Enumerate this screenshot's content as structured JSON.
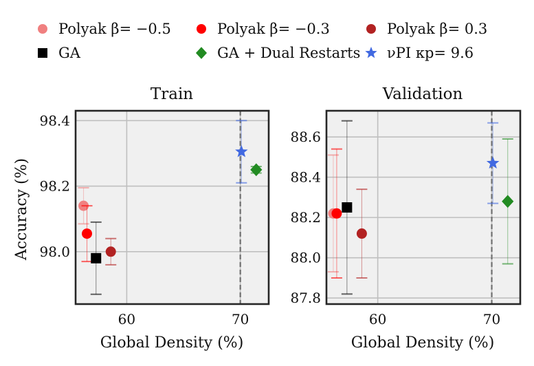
{
  "legend": [
    {
      "label": "Polyak β= −0.5",
      "color": "#F08080",
      "marker": "circle"
    },
    {
      "label": "Polyak β= −0.3",
      "color": "#FF0000",
      "marker": "circle"
    },
    {
      "label": "Polyak β= 0.3",
      "color": "#B22222",
      "marker": "circle"
    },
    {
      "label": "GA",
      "color": "#000000",
      "marker": "square"
    },
    {
      "label": "GA + Dual Restarts",
      "color": "#228B22",
      "marker": "diamond"
    },
    {
      "label": "νPI κp= 9.6",
      "color": "#4169E1",
      "marker": "star"
    }
  ],
  "chart_data": [
    {
      "type": "scatter",
      "title": "Train",
      "xlabel": "Global Density (%)",
      "ylabel": "Accuracy (%)",
      "xlim": [
        55.5,
        72.5
      ],
      "ylim": [
        97.84,
        98.43
      ],
      "xticks": [
        60,
        70
      ],
      "yticks": [
        98.0,
        98.2,
        98.4
      ],
      "yticklabels": [
        "98.0",
        "98.2",
        "98.4"
      ],
      "grid": true,
      "target_line_x": 70,
      "series": [
        {
          "name": "Polyak β= −0.5",
          "x": 56.2,
          "y": 98.14,
          "err_low": 98.085,
          "err_high": 98.195
        },
        {
          "name": "Polyak β= −0.3",
          "x": 56.5,
          "y": 98.055,
          "err_low": 97.97,
          "err_high": 98.14
        },
        {
          "name": "Polyak β= 0.3",
          "x": 58.6,
          "y": 98.0,
          "err_low": 97.96,
          "err_high": 98.04
        },
        {
          "name": "GA",
          "x": 57.3,
          "y": 97.98,
          "err_low": 97.87,
          "err_high": 98.09
        },
        {
          "name": "GA + Dual Restarts",
          "x": 71.4,
          "y": 98.25,
          "err_low": 98.24,
          "err_high": 98.26
        },
        {
          "name": "νPI κp= 9.6",
          "x": 70.1,
          "y": 98.305,
          "err_low": 98.21,
          "err_high": 98.4
        }
      ]
    },
    {
      "type": "scatter",
      "title": "Validation",
      "xlabel": "Global Density (%)",
      "ylabel": "",
      "xlim": [
        55.5,
        72.5
      ],
      "ylim": [
        87.77,
        88.73
      ],
      "xticks": [
        60,
        70
      ],
      "yticks": [
        87.8,
        88.0,
        88.2,
        88.4,
        88.6
      ],
      "yticklabels": [
        "87.8",
        "88.0",
        "88.2",
        "88.4",
        "88.6"
      ],
      "grid": true,
      "target_line_x": 70,
      "series": [
        {
          "name": "Polyak β= −0.5",
          "x": 56.1,
          "y": 88.22,
          "err_low": 87.93,
          "err_high": 88.51
        },
        {
          "name": "Polyak β= −0.3",
          "x": 56.4,
          "y": 88.22,
          "err_low": 87.9,
          "err_high": 88.54
        },
        {
          "name": "Polyak β= 0.3",
          "x": 58.6,
          "y": 88.12,
          "err_low": 87.9,
          "err_high": 88.34
        },
        {
          "name": "GA",
          "x": 57.3,
          "y": 88.25,
          "err_low": 87.82,
          "err_high": 88.68
        },
        {
          "name": "GA + Dual Restarts",
          "x": 71.4,
          "y": 88.28,
          "err_low": 87.97,
          "err_high": 88.59
        },
        {
          "name": "νPI κp= 9.6",
          "x": 70.1,
          "y": 88.47,
          "err_low": 88.27,
          "err_high": 88.67
        }
      ]
    }
  ]
}
